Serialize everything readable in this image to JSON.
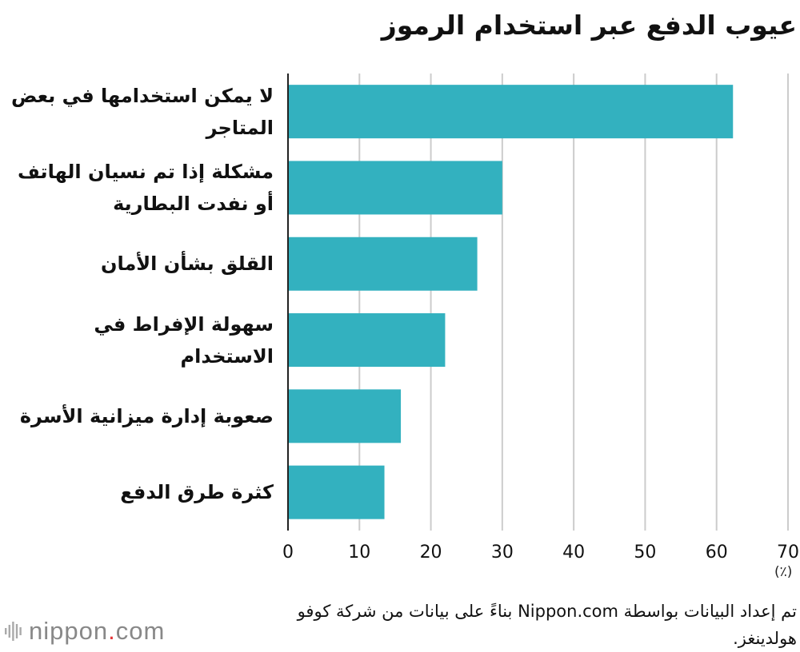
{
  "chart_data": {
    "type": "bar",
    "orientation": "horizontal",
    "title": "عيوب الدفع عبر استخدام الرموز",
    "categories": [
      "لا يمكن استخدامها في بعض المتاجر",
      "مشكلة إذا تم نسيان الهاتف أو نفدت البطارية",
      "القلق بشأن الأمان",
      "سهولة الإفراط في الاستخدام",
      "صعوبة إدارة ميزانية الأسرة",
      "كثرة طرق الدفع"
    ],
    "values": [
      62.3,
      30.0,
      26.5,
      22.0,
      15.8,
      13.5
    ],
    "xlim": [
      0,
      70
    ],
    "xticks": [
      "0",
      "10",
      "20",
      "30",
      "40",
      "50",
      "60",
      "70"
    ],
    "xunit": "(٪)",
    "grid": true,
    "bar_color": "#33b1bf"
  },
  "source": "تم إعداد البيانات بواسطة Nippon.com بناءً على بيانات من شركة كوفو هولدينغز.",
  "logo": {
    "text_main": "nippon",
    "text_dot": ".",
    "text_tld": "com"
  }
}
